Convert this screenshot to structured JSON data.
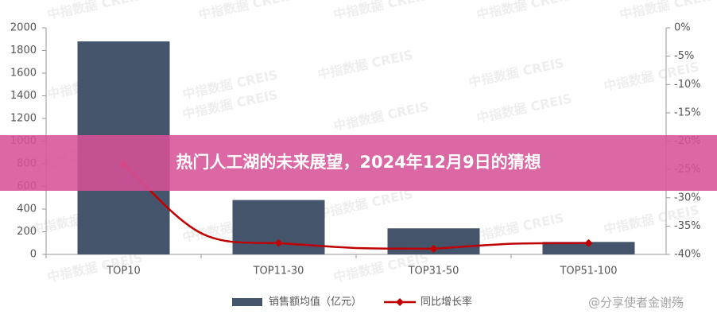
{
  "chart_data": {
    "type": "combo",
    "title": "热门人工湖的未来展望，2024年12月9日的猜想",
    "watermark": "中指数据 CREIS",
    "credit": "@分享使者金谢殇",
    "categories": [
      "TOP10",
      "TOP11-30",
      "TOP31-50",
      "TOP51-100"
    ],
    "series": [
      {
        "name": "销售额均值（亿元）",
        "type": "bar",
        "color": "#44546a",
        "values": [
          1880,
          480,
          230,
          110
        ]
      },
      {
        "name": "同比增长率",
        "type": "line",
        "axis": "y2",
        "color": "#c00000",
        "values": [
          -24,
          -38,
          -39,
          -38
        ]
      }
    ],
    "ylim": [
      0,
      2000
    ],
    "yticks": [
      0,
      200,
      400,
      600,
      800,
      1000,
      1200,
      1400,
      1600,
      1800,
      2000
    ],
    "y2lim": [
      -40,
      0
    ],
    "y2ticks": [
      {
        "value": 0,
        "label": "0%"
      },
      {
        "value": -5,
        "label": "-5%"
      },
      {
        "value": -10,
        "label": "-10%"
      },
      {
        "value": -15,
        "label": "-15%"
      },
      {
        "value": -20,
        "label": "-20%"
      },
      {
        "value": -25,
        "label": "-25%"
      },
      {
        "value": -30,
        "label": "-30%"
      },
      {
        "value": -35,
        "label": "-35%"
      },
      {
        "value": -40,
        "label": "-40%"
      }
    ],
    "grid": false
  }
}
